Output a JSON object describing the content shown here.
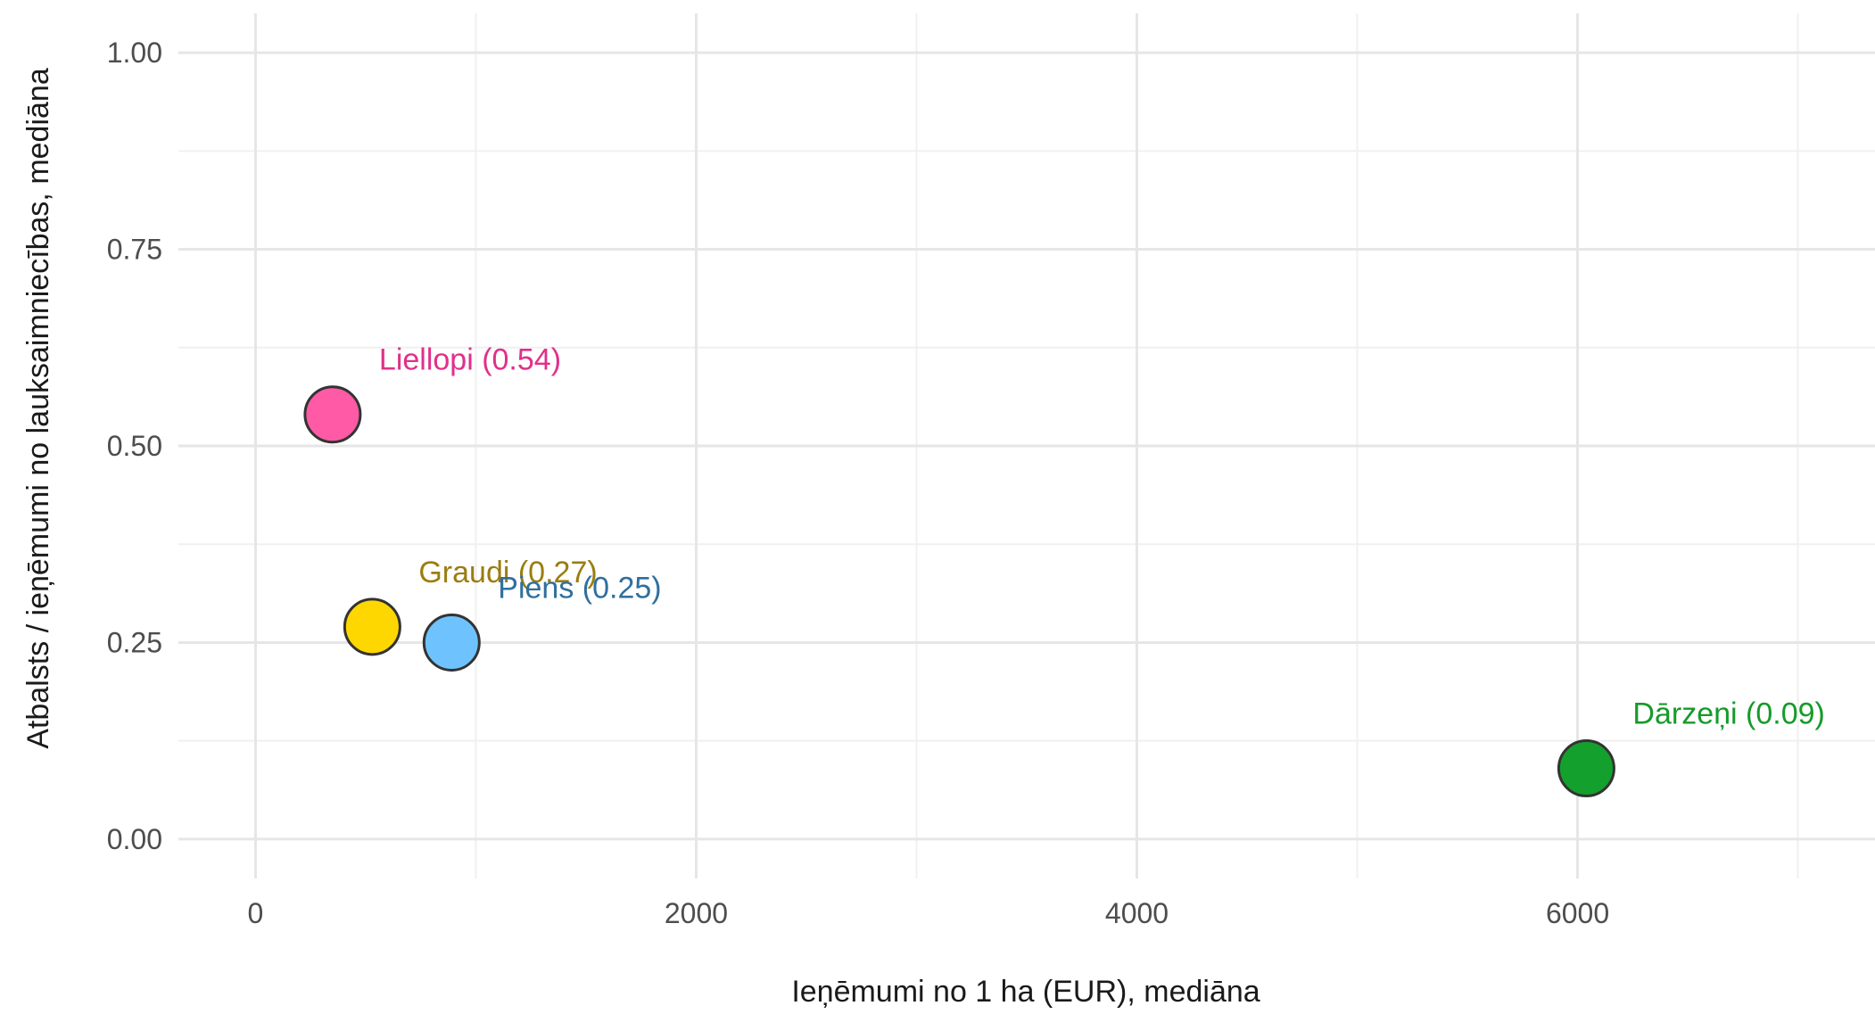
{
  "chart_data": {
    "type": "scatter",
    "xlabel": "Ieņēmumi no 1 ha (EUR), mediāna",
    "ylabel": "Atbalsts / ieņēmumi no lauksaimniecības, mediāna",
    "xlim": [
      -350,
      7350
    ],
    "ylim": [
      -0.05,
      1.05
    ],
    "x_ticks": [
      0,
      2000,
      4000,
      6000
    ],
    "x_tick_labels": [
      "0",
      "2000",
      "4000",
      "6000"
    ],
    "x_minor": [
      1000,
      3000,
      5000,
      7000
    ],
    "y_ticks": [
      0,
      0.25,
      0.5,
      0.75,
      1.0
    ],
    "y_tick_labels": [
      "0.00",
      "0.25",
      "0.50",
      "0.75",
      "1.00"
    ],
    "y_minor": [
      0.125,
      0.375,
      0.625,
      0.875
    ],
    "grid": true,
    "points": [
      {
        "label": "Liellopi (0.54)",
        "x": 350,
        "y": 0.54,
        "fill": "#ff5aa6",
        "label_color": "#e0308a"
      },
      {
        "label": "Graudi (0.27)",
        "x": 530,
        "y": 0.27,
        "fill": "#ffd700",
        "label_color": "#9a7d10"
      },
      {
        "label": "Piens (0.25)",
        "x": 890,
        "y": 0.25,
        "fill": "#6ec3ff",
        "label_color": "#2f6f9e"
      },
      {
        "label": "Dārzeņi (0.09)",
        "x": 6040,
        "y": 0.09,
        "fill": "#14a02c",
        "label_color": "#169a2a"
      }
    ]
  }
}
